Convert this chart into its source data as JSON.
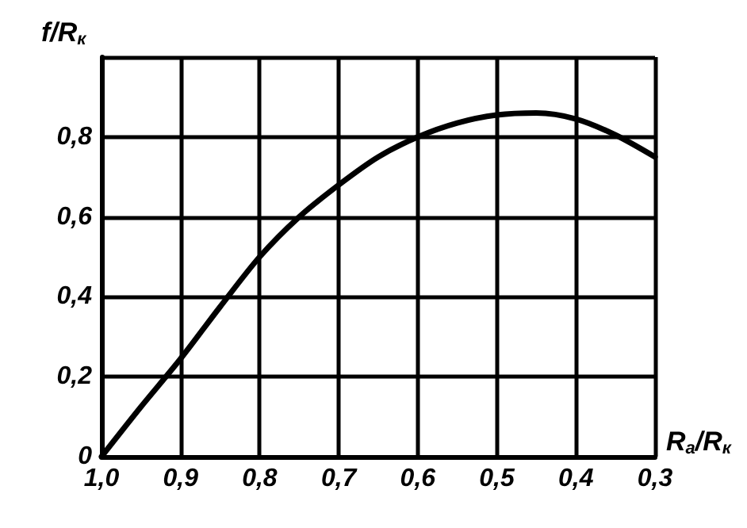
{
  "chart_data": {
    "type": "line",
    "xlabel": "R$_{а}$/R$_{к}$",
    "ylabel": "f/R$_{к}$",
    "x": [
      1.0,
      0.95,
      0.9,
      0.85,
      0.8,
      0.75,
      0.7,
      0.65,
      0.6,
      0.55,
      0.5,
      0.45,
      0.4,
      0.35,
      0.3
    ],
    "series": [
      {
        "color": "#000000",
        "values": [
          0,
          0.125,
          0.245,
          0.375,
          0.5,
          0.6,
          0.68,
          0.75,
          0.8,
          0.835,
          0.855,
          0.86,
          0.845,
          0.805,
          0.75
        ]
      }
    ],
    "xlim": [
      1.0,
      0.3
    ],
    "xticks": [
      {
        "value": 1.0,
        "label": "1,0"
      },
      {
        "value": 0.9,
        "label": "0,9"
      },
      {
        "value": 0.8,
        "label": "0,8"
      },
      {
        "value": 0.7,
        "label": "0,7"
      },
      {
        "value": 0.6,
        "label": "0,6"
      },
      {
        "value": 0.5,
        "label": "0,5"
      },
      {
        "value": 0.4,
        "label": "0,4"
      },
      {
        "value": 0.3,
        "label": "0,3"
      }
    ],
    "ylim": [
      0,
      1.0
    ],
    "yticks": [
      0,
      {
        "value": 0.2,
        "label": "0,2"
      },
      {
        "value": 0.4,
        "label": "0,4"
      },
      {
        "value": 0.6,
        "label": "0,6"
      },
      {
        "value": 0.8,
        "label": "0,8"
      },
      {
        "value": 1.0,
        "label": null
      }
    ],
    "grid": true,
    "marker": "none",
    "line_style": "solid"
  }
}
